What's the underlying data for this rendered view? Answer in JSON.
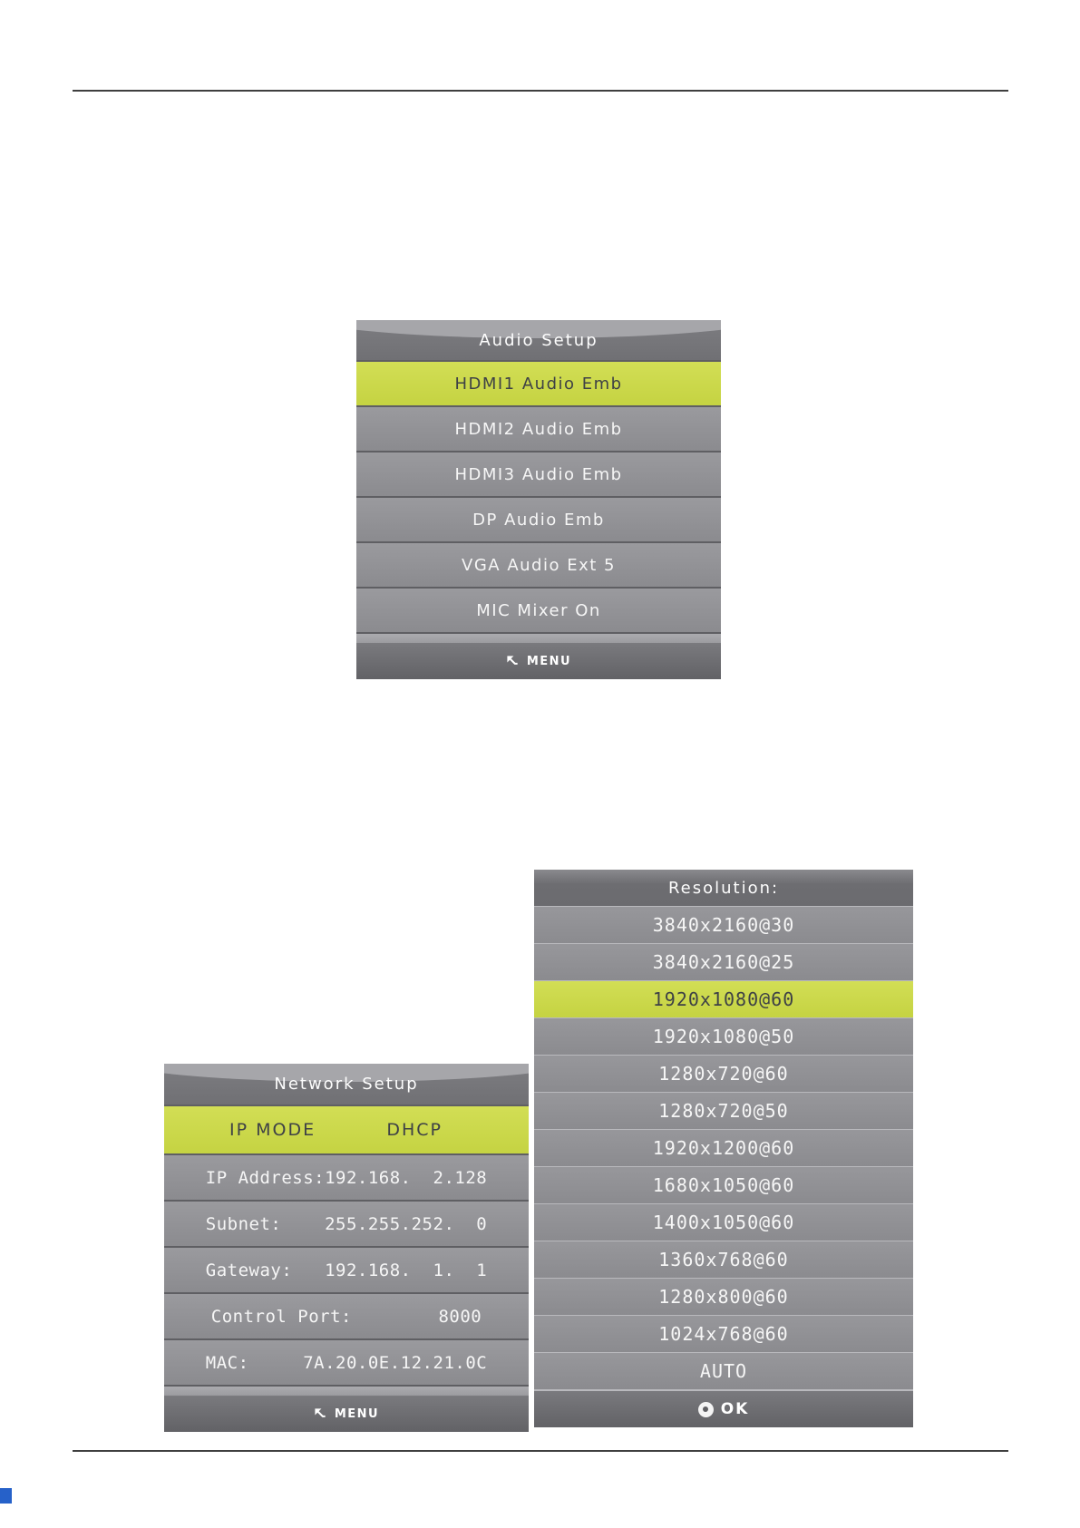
{
  "page": {
    "background": "#ffffff",
    "header_rule_color": "#3f3f3f",
    "footer_rule_color": "#3f3f3f",
    "print_mark_color": "#2661c9"
  },
  "colors": {
    "highlight_top": "#d2de55",
    "highlight_bottom": "#c5d342",
    "highlight_text": "#3e4146",
    "panel_row_gray": "#919196",
    "panel_title_gray": "#77777b",
    "panel_footer_gray": "#6c6c70",
    "row_text": "#f6f6f6"
  },
  "audio_menu": {
    "title": "Audio Setup",
    "items": [
      {
        "label": "HDMI1 Audio Emb",
        "highlighted": true
      },
      {
        "label": "HDMI2 Audio Emb",
        "highlighted": false
      },
      {
        "label": "HDMI3 Audio Emb",
        "highlighted": false
      },
      {
        "label": "DP Audio Emb",
        "highlighted": false
      },
      {
        "label": "VGA Audio Ext 5",
        "highlighted": false
      },
      {
        "label": "MIC Mixer On",
        "highlighted": false
      }
    ],
    "footer": {
      "icon": "return-arrow",
      "label": "MENU"
    }
  },
  "network_menu": {
    "title": "Network Setup",
    "mode_row": {
      "label": "IP MODE",
      "value": "DHCP",
      "highlighted": true
    },
    "rows": [
      "IP Address:192.168.  2.128",
      "Subnet:    255.255.252.  0",
      "Gateway:   192.168.  1.  1",
      "Control Port:        8000",
      "MAC:     7A.20.0E.12.21.0C"
    ],
    "footer": {
      "icon": "return-arrow",
      "label": "MENU"
    }
  },
  "resolution_menu": {
    "title": "Resolution:",
    "highlighted_index": 2,
    "items": [
      "3840x2160@30",
      "3840x2160@25",
      "1920x1080@60",
      "1920x1080@50",
      "1280x720@60",
      "1280x720@50",
      "1920x1200@60",
      "1680x1050@60",
      "1400x1050@60",
      "1360x768@60",
      "1280x800@60",
      "1024x768@60",
      "AUTO"
    ],
    "footer": {
      "icon": "ok-dot",
      "label": "OK"
    }
  }
}
